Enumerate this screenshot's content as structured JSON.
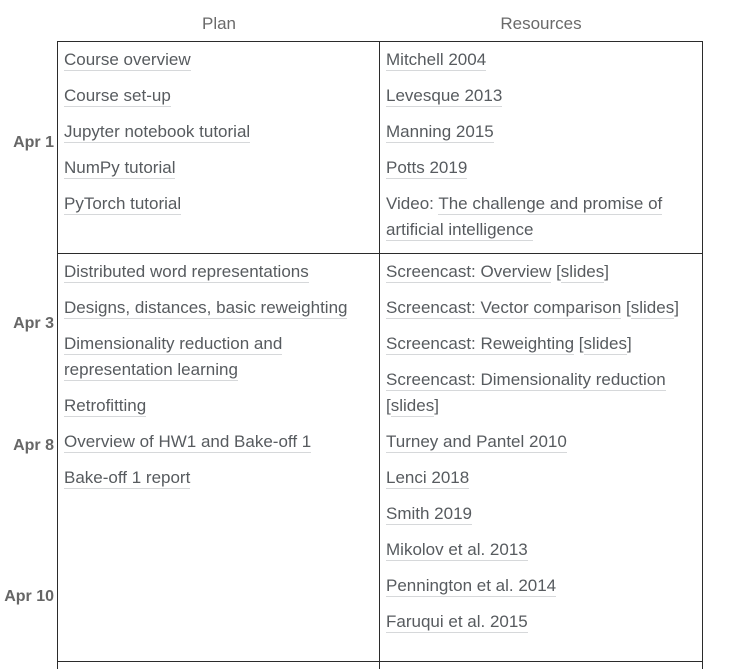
{
  "headers": {
    "plan": "Plan",
    "resources": "Resources"
  },
  "colors": {
    "background": "#ffffff",
    "table_border": "#2b2b2b",
    "link_text": "#575b5f",
    "link_underline": "#d6d8da",
    "column_header_text": "#6a6a6a",
    "date_text": "#666666"
  },
  "rows": [
    {
      "dates": [
        {
          "label": "Apr 1"
        }
      ],
      "plan_items": [
        [
          {
            "text": "Course overview",
            "link": true
          }
        ],
        [
          {
            "text": "Course set-up",
            "link": true
          }
        ],
        [
          {
            "text": "Jupyter notebook tutorial",
            "link": true
          }
        ],
        [
          {
            "text": "NumPy tutorial",
            "link": true
          }
        ],
        [
          {
            "text": "PyTorch tutorial",
            "link": true
          }
        ]
      ],
      "resources_items": [
        [
          {
            "text": "Mitchell 2004",
            "link": true
          }
        ],
        [
          {
            "text": "Levesque 2013",
            "link": true
          }
        ],
        [
          {
            "text": "Manning 2015",
            "link": true
          }
        ],
        [
          {
            "text": "Potts 2019",
            "link": true
          }
        ],
        [
          {
            "text": "Video: ",
            "link": false
          },
          {
            "text": "The challenge and promise of artificial intelligence",
            "link": true
          }
        ]
      ]
    },
    {
      "dates": [
        {
          "label": "Apr 3"
        },
        {
          "label": "Apr 8"
        },
        {
          "label": "Apr 10"
        }
      ],
      "plan_items": [
        [
          {
            "text": "Distributed word representations",
            "link": true
          }
        ],
        [
          {
            "text": "Designs, distances, basic reweighting",
            "link": true
          }
        ],
        [
          {
            "text": "Dimensionality reduction and representation learning",
            "link": true
          }
        ],
        [
          {
            "text": "Retrofitting",
            "link": true
          }
        ],
        [
          {
            "text": "Overview of HW1 and Bake-off 1",
            "link": true
          }
        ],
        [
          {
            "text": "Bake-off 1 report",
            "link": true
          }
        ]
      ],
      "resources_items": [
        [
          {
            "text": "Screencast: Overview",
            "link": true
          },
          {
            "text": " [",
            "link": false
          },
          {
            "text": "slides",
            "link": true
          },
          {
            "text": "]",
            "link": false
          }
        ],
        [
          {
            "text": "Screencast: Vector comparison",
            "link": true
          },
          {
            "text": " [",
            "link": false
          },
          {
            "text": "slides",
            "link": true
          },
          {
            "text": "]",
            "link": false
          }
        ],
        [
          {
            "text": "Screencast: Reweighting",
            "link": true
          },
          {
            "text": " [",
            "link": false
          },
          {
            "text": "slides",
            "link": true
          },
          {
            "text": "]",
            "link": false
          }
        ],
        [
          {
            "text": "Screencast: Dimensionality reduction",
            "link": true
          },
          {
            "text": " [",
            "link": false
          },
          {
            "text": "slides",
            "link": true
          },
          {
            "text": "]",
            "link": false
          }
        ],
        [
          {
            "text": "Turney and Pantel 2010",
            "link": true
          }
        ],
        [
          {
            "text": "Lenci 2018",
            "link": true
          }
        ],
        [
          {
            "text": "Smith 2019",
            "link": true
          }
        ],
        [
          {
            "text": "Mikolov et al. 2013",
            "link": true
          }
        ],
        [
          {
            "text": "Pennington et al. 2014",
            "link": true
          }
        ],
        [
          {
            "text": "Faruqui et al. 2015",
            "link": true
          }
        ]
      ]
    }
  ]
}
